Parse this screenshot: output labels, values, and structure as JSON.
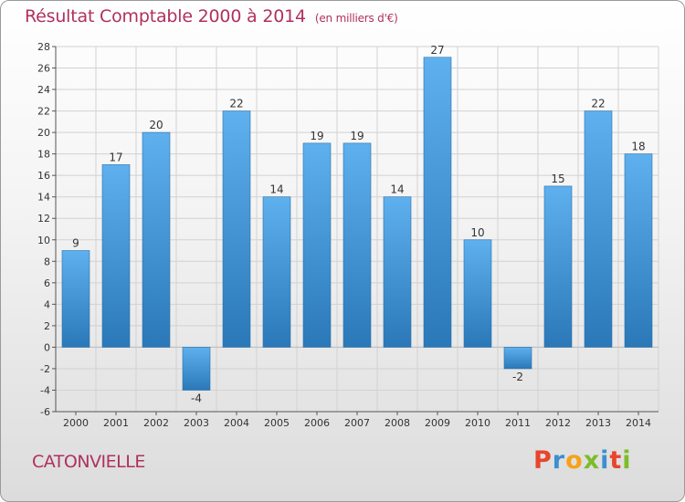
{
  "chart_data": {
    "type": "bar",
    "title": "Résultat Comptable 2000 à 2014",
    "subtitle": "(en milliers d'€)",
    "categories": [
      "2000",
      "2001",
      "2002",
      "2003",
      "2004",
      "2005",
      "2006",
      "2007",
      "2008",
      "2009",
      "2010",
      "2011",
      "2012",
      "2013",
      "2014"
    ],
    "values": [
      9,
      17,
      20,
      -4,
      22,
      14,
      19,
      19,
      14,
      27,
      10,
      -2,
      15,
      22,
      18
    ],
    "ylim": [
      -6,
      28
    ],
    "yticks": [
      -6,
      -4,
      -2,
      0,
      2,
      4,
      6,
      8,
      10,
      12,
      14,
      16,
      18,
      20,
      22,
      24,
      26,
      28
    ],
    "xlabel": "",
    "ylabel": "",
    "grid": true,
    "bar_color": "#3d8fd0"
  },
  "footer": {
    "commune": "CATONVIELLE",
    "brand_letters": [
      "P",
      "r",
      "o",
      "x",
      "i",
      "t",
      "i"
    ],
    "brand_colors": [
      "#e8452c",
      "#3d8fd0",
      "#f5a21b",
      "#7cbd2a",
      "#3d8fd0",
      "#e8452c",
      "#7cbd2a"
    ]
  }
}
